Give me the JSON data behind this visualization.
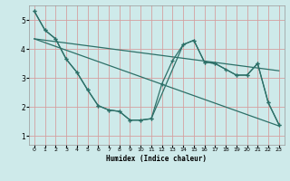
{
  "xlabel": "Humidex (Indice chaleur)",
  "bg_color": "#ceeaea",
  "grid_color": "#d4a0a0",
  "line_color": "#2d7068",
  "xlim": [
    -0.5,
    23.5
  ],
  "ylim": [
    0.7,
    5.5
  ],
  "xticks": [
    0,
    1,
    2,
    3,
    4,
    5,
    6,
    7,
    8,
    9,
    10,
    11,
    12,
    13,
    14,
    15,
    16,
    17,
    18,
    19,
    20,
    21,
    22,
    23
  ],
  "yticks": [
    1,
    2,
    3,
    4,
    5
  ],
  "line1_x": [
    0,
    1,
    2,
    3,
    4,
    5,
    6,
    7,
    8,
    9,
    10,
    11,
    12,
    13,
    14,
    15,
    16,
    17,
    18,
    19,
    20,
    21,
    22,
    23
  ],
  "line1_y": [
    5.3,
    4.65,
    4.35,
    3.65,
    3.2,
    2.6,
    2.05,
    1.9,
    1.85,
    1.55,
    1.55,
    1.6,
    2.8,
    3.6,
    4.15,
    4.3,
    3.55,
    3.5,
    3.3,
    3.1,
    3.1,
    3.5,
    2.15,
    1.4
  ],
  "line2_x": [
    0,
    1,
    2,
    3,
    4,
    5,
    6,
    7,
    8,
    9,
    10,
    11,
    14,
    15,
    16,
    17,
    19,
    20,
    21,
    22,
    23
  ],
  "line2_y": [
    5.3,
    4.65,
    4.35,
    3.65,
    3.2,
    2.6,
    2.05,
    1.9,
    1.85,
    1.55,
    1.55,
    1.6,
    4.15,
    4.3,
    3.55,
    3.5,
    3.1,
    3.1,
    3.5,
    2.15,
    1.4
  ],
  "trend1_x": [
    0,
    23
  ],
  "trend1_y": [
    4.35,
    3.25
  ],
  "trend2_x": [
    0,
    23
  ],
  "trend2_y": [
    4.35,
    1.35
  ]
}
